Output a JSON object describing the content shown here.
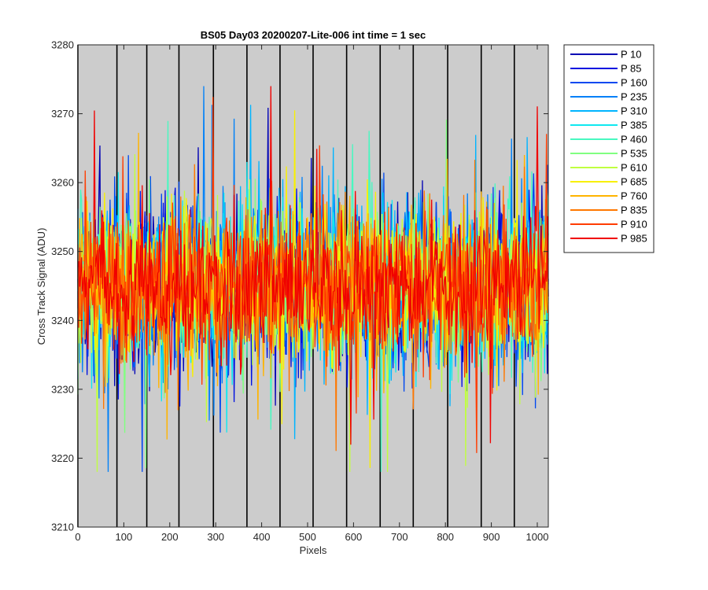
{
  "chart_data": {
    "type": "line",
    "title": "BS05 Day03 20200207-Lite-006 int time = 1 sec",
    "xlabel": "Pixels",
    "ylabel": "Cross Track Signal (ADU)",
    "xlim": [
      0,
      1024
    ],
    "ylim": [
      3210,
      3280
    ],
    "xticks": [
      0,
      100,
      200,
      300,
      400,
      500,
      600,
      700,
      800,
      900,
      1000
    ],
    "yticks": [
      3210,
      3220,
      3230,
      3240,
      3250,
      3260,
      3270,
      3280
    ],
    "background_color": "#cccccc",
    "vertical_lines_x": [
      0,
      85,
      150,
      220,
      295,
      368,
      440,
      512,
      585,
      658,
      730,
      805,
      878,
      950
    ],
    "vertical_line_color": "#000000",
    "legend_position": "outside-top-right",
    "noise_model": {
      "mean": 3245,
      "typical_range": [
        3230,
        3260
      ],
      "extreme_range": [
        3218,
        3274
      ]
    },
    "series": [
      {
        "name": "P 10",
        "color": "#0000b4"
      },
      {
        "name": "P 85",
        "color": "#0010e0"
      },
      {
        "name": "P 160",
        "color": "#0048f0"
      },
      {
        "name": "P 235",
        "color": "#0080f8"
      },
      {
        "name": "P 310",
        "color": "#00b4ff"
      },
      {
        "name": "P 385",
        "color": "#10e8f0"
      },
      {
        "name": "P 460",
        "color": "#48f8c0"
      },
      {
        "name": "P 535",
        "color": "#80ff80"
      },
      {
        "name": "P 610",
        "color": "#c0ff40"
      },
      {
        "name": "P 685",
        "color": "#f8f000"
      },
      {
        "name": "P 760",
        "color": "#ffb400"
      },
      {
        "name": "P 835",
        "color": "#ff7800"
      },
      {
        "name": "P 910",
        "color": "#ff3c00"
      },
      {
        "name": "P 985",
        "color": "#f00000"
      }
    ]
  }
}
